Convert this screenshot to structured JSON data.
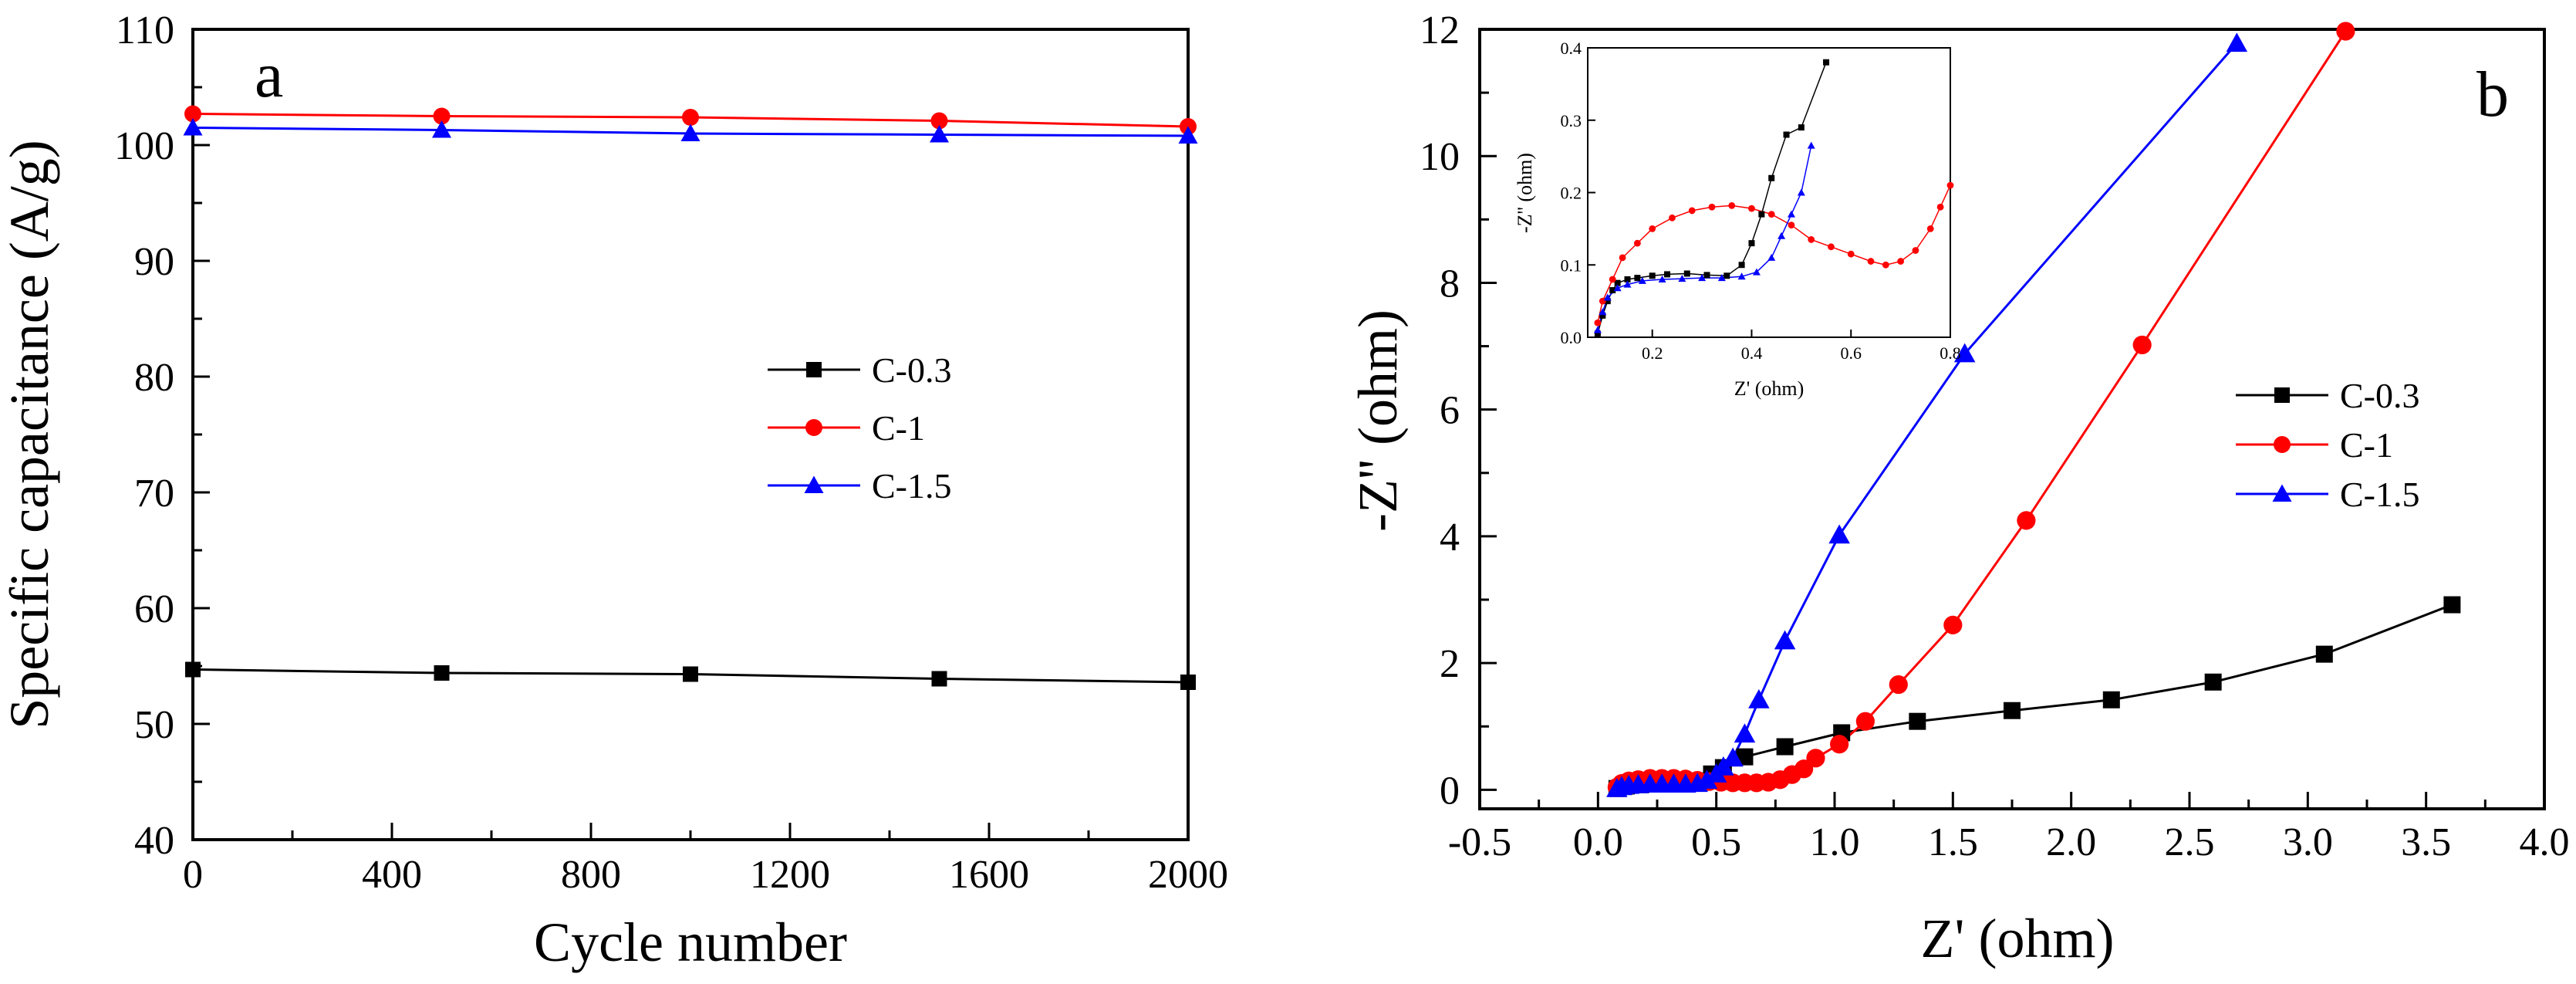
{
  "chart_data": [
    {
      "panel": "a",
      "type": "line",
      "xlabel": "Cycle number",
      "ylabel": "Specific capacitance (A/g)",
      "xlim": [
        0,
        2000
      ],
      "ylim": [
        40,
        110
      ],
      "xticks": [
        0,
        400,
        800,
        1200,
        1600,
        2000
      ],
      "yticks": [
        40,
        50,
        60,
        70,
        80,
        90,
        100,
        110
      ],
      "grid": false,
      "legend_position": "center-right",
      "series": [
        {
          "name": "C-0.3",
          "marker": "square",
          "color": "#000000",
          "x": [
            0,
            500,
            1000,
            1500,
            2000
          ],
          "y": [
            54.7,
            54.4,
            54.3,
            53.9,
            53.6
          ]
        },
        {
          "name": "C-1",
          "marker": "circle",
          "color": "#ff0000",
          "x": [
            0,
            500,
            1000,
            1500,
            2000
          ],
          "y": [
            102.7,
            102.5,
            102.4,
            102.1,
            101.6
          ]
        },
        {
          "name": "C-1.5",
          "marker": "triangle",
          "color": "#0000ff",
          "x": [
            0,
            500,
            1000,
            1500,
            2000
          ],
          "y": [
            101.5,
            101.3,
            101.0,
            100.9,
            100.8
          ]
        }
      ]
    },
    {
      "panel": "b",
      "type": "line",
      "xlabel": "Z' (ohm)",
      "ylabel": "-Z'' (ohm)",
      "xlim": [
        -0.5,
        4.0
      ],
      "ylim": [
        -0.3,
        12
      ],
      "xticks": [
        -0.5,
        0.0,
        0.5,
        1.0,
        1.5,
        2.0,
        2.5,
        3.0,
        3.5,
        4.0
      ],
      "yticks": [
        0,
        2,
        4,
        6,
        8,
        10,
        12
      ],
      "grid": false,
      "legend_position": "center-right",
      "series": [
        {
          "name": "C-0.3",
          "marker": "square",
          "color": "#000000",
          "x": [
            0.08,
            0.12,
            0.18,
            0.24,
            0.3,
            0.36,
            0.42,
            0.48,
            0.53,
            0.62,
            0.79,
            1.03,
            1.35,
            1.75,
            2.17,
            2.6,
            3.07,
            3.61
          ],
          "y": [
            0.02,
            0.06,
            0.08,
            0.09,
            0.09,
            0.1,
            0.14,
            0.25,
            0.35,
            0.52,
            0.68,
            0.9,
            1.08,
            1.25,
            1.42,
            1.7,
            2.14,
            2.92
          ]
        },
        {
          "name": "C-1",
          "marker": "circle",
          "color": "#ff0000",
          "x": [
            0.08,
            0.1,
            0.13,
            0.17,
            0.22,
            0.27,
            0.32,
            0.37,
            0.42,
            0.47,
            0.52,
            0.57,
            0.62,
            0.67,
            0.72,
            0.77,
            0.82,
            0.87,
            0.92,
            1.02,
            1.13,
            1.27,
            1.5,
            1.81,
            2.3,
            3.16
          ],
          "y": [
            0.04,
            0.1,
            0.14,
            0.16,
            0.18,
            0.18,
            0.18,
            0.17,
            0.15,
            0.13,
            0.12,
            0.11,
            0.11,
            0.11,
            0.12,
            0.16,
            0.24,
            0.33,
            0.5,
            0.72,
            1.08,
            1.66,
            2.6,
            4.25,
            7.02,
            11.97
          ]
        },
        {
          "name": "C-1.5",
          "marker": "triangle",
          "color": "#0000ff",
          "x": [
            0.08,
            0.1,
            0.13,
            0.17,
            0.22,
            0.27,
            0.32,
            0.37,
            0.42,
            0.46,
            0.5,
            0.53,
            0.57,
            0.62,
            0.68,
            0.79,
            1.02,
            1.55,
            2.7
          ],
          "y": [
            0.02,
            0.05,
            0.07,
            0.08,
            0.09,
            0.09,
            0.09,
            0.09,
            0.1,
            0.15,
            0.25,
            0.36,
            0.5,
            0.88,
            1.42,
            2.35,
            4.02,
            6.88,
            11.78
          ]
        }
      ],
      "inset": {
        "type": "line",
        "xlabel": "Z' (ohm)",
        "ylabel": "-Z'' (ohm)",
        "xlim": [
          0.07,
          0.8
        ],
        "ylim": [
          0.0,
          0.4
        ],
        "xticks": [
          0.2,
          0.4,
          0.6,
          0.8
        ],
        "yticks": [
          0.0,
          0.1,
          0.2,
          0.3,
          0.4
        ],
        "series": [
          {
            "name": "C-0.3",
            "marker": "square",
            "color": "#000000",
            "x": [
              0.09,
              0.1,
              0.11,
              0.12,
              0.13,
              0.15,
              0.17,
              0.2,
              0.23,
              0.27,
              0.31,
              0.35,
              0.38,
              0.4,
              0.42,
              0.44,
              0.47,
              0.5,
              0.55
            ],
            "y": [
              0.005,
              0.03,
              0.05,
              0.065,
              0.075,
              0.08,
              0.082,
              0.085,
              0.087,
              0.088,
              0.086,
              0.085,
              0.1,
              0.13,
              0.17,
              0.22,
              0.28,
              0.29,
              0.38
            ]
          },
          {
            "name": "C-1",
            "marker": "circle",
            "color": "#ff0000",
            "x": [
              0.09,
              0.1,
              0.12,
              0.14,
              0.17,
              0.2,
              0.24,
              0.28,
              0.32,
              0.36,
              0.4,
              0.44,
              0.48,
              0.52,
              0.56,
              0.6,
              0.64,
              0.67,
              0.7,
              0.73,
              0.76,
              0.78,
              0.8
            ],
            "y": [
              0.02,
              0.05,
              0.08,
              0.11,
              0.13,
              0.15,
              0.165,
              0.175,
              0.18,
              0.182,
              0.178,
              0.17,
              0.155,
              0.135,
              0.125,
              0.115,
              0.105,
              0.1,
              0.105,
              0.12,
              0.15,
              0.18,
              0.21
            ]
          },
          {
            "name": "C-1.5",
            "marker": "triangle",
            "color": "#0000ff",
            "x": [
              0.09,
              0.1,
              0.11,
              0.13,
              0.15,
              0.18,
              0.22,
              0.26,
              0.3,
              0.34,
              0.38,
              0.41,
              0.44,
              0.46,
              0.48,
              0.5,
              0.52
            ],
            "y": [
              0.01,
              0.035,
              0.055,
              0.068,
              0.073,
              0.078,
              0.08,
              0.081,
              0.082,
              0.082,
              0.084,
              0.09,
              0.11,
              0.14,
              0.17,
              0.2,
              0.265
            ]
          }
        ]
      }
    }
  ]
}
